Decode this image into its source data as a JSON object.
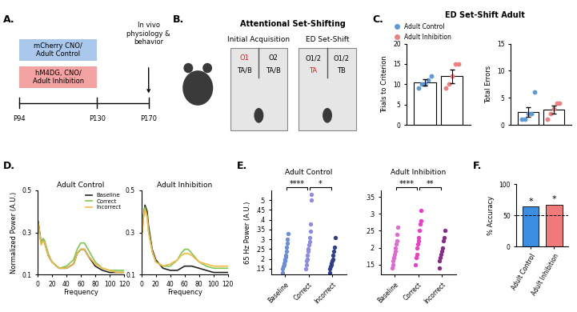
{
  "panel_labels": [
    "A.",
    "B.",
    "C.",
    "D.",
    "E.",
    "F."
  ],
  "timeline": {
    "bars": [
      {
        "label": "mCherry CNO/\nAdult Control",
        "color": "#a9c8ec"
      },
      {
        "label": "hM4DG, CNO/\nAdult Inhibition",
        "color": "#f4a3a3"
      }
    ],
    "ticks": [
      "P94",
      "P130",
      "P170"
    ],
    "endpoint": "In vivo\nphysiology &\nbehavior"
  },
  "task": {
    "title": "Attentional Set-Shifting",
    "stages": [
      {
        "title": "Initial Acquisition",
        "arms": [
          {
            "odor": "O1",
            "odor_color": "#e02020",
            "texture": "TA/B",
            "texture_color": "#000000"
          },
          {
            "odor": "O2",
            "odor_color": "#000000",
            "texture": "TA/B",
            "texture_color": "#000000"
          }
        ]
      },
      {
        "title": "ED Set-Shift",
        "arms": [
          {
            "odor": "O1/2",
            "odor_color": "#000000",
            "texture": "TA",
            "texture_color": "#e02020"
          },
          {
            "odor": "O1/2",
            "odor_color": "#000000",
            "texture": "TB",
            "texture_color": "#000000"
          }
        ]
      }
    ]
  },
  "chart_data": [
    {
      "type": "bar",
      "title": "ED Set-Shift Adult",
      "ylabel": "Trials to Criterion",
      "categories": [
        null
      ],
      "ylim": [
        0,
        20
      ],
      "yticks": [
        0,
        5,
        10,
        15,
        20
      ],
      "legend": "lower left",
      "series": [
        {
          "name": "Adult Control",
          "color": "#5b9bd5",
          "values": [
            10.4
          ],
          "errors": [
            0.8
          ],
          "points": [
            9,
            10,
            10,
            11,
            12
          ]
        },
        {
          "name": "Adult Inhibition",
          "color": "#f08080",
          "values": [
            12
          ],
          "errors": [
            1.7
          ],
          "points": [
            9,
            10,
            12,
            15,
            15
          ]
        }
      ]
    },
    {
      "type": "bar",
      "ylabel": "Total Errors",
      "categories": [
        null
      ],
      "ylim": [
        0,
        15
      ],
      "yticks": [
        0,
        5,
        10,
        15
      ],
      "series": [
        {
          "color": "#5b9bd5",
          "values": [
            2.4
          ],
          "errors": [
            0.9
          ],
          "points": [
            1,
            1,
            2,
            2,
            6
          ]
        },
        {
          "color": "#f08080",
          "values": [
            2.8
          ],
          "errors": [
            0.8
          ],
          "points": [
            1,
            2,
            3,
            4,
            4
          ]
        }
      ]
    },
    {
      "type": "line",
      "title": "Adult Control",
      "xlabel": "Frequency",
      "ylabel": "Normalized Power (A.U.)",
      "x": [
        1,
        3,
        5,
        8,
        10,
        15,
        20,
        30,
        40,
        50,
        55,
        60,
        65,
        70,
        80,
        90,
        100,
        110,
        120
      ],
      "xlim": [
        0,
        120
      ],
      "xticks": [
        0,
        20,
        40,
        60,
        80,
        100,
        120
      ],
      "ylim": [
        0.1,
        0.5
      ],
      "yticks": [
        0.1,
        0.3,
        0.5
      ],
      "legend": "upper right",
      "series": [
        {
          "name": "Baseline",
          "color": "#222222",
          "values": [
            0.35,
            0.3,
            0.25,
            0.27,
            0.25,
            0.19,
            0.16,
            0.13,
            0.13,
            0.15,
            0.2,
            0.22,
            0.22,
            0.19,
            0.14,
            0.12,
            0.11,
            0.11,
            0.11
          ]
        },
        {
          "name": "Correct",
          "color": "#7ec850",
          "values": [
            0.35,
            0.3,
            0.25,
            0.27,
            0.26,
            0.2,
            0.16,
            0.13,
            0.14,
            0.17,
            0.22,
            0.25,
            0.25,
            0.22,
            0.16,
            0.13,
            0.12,
            0.12,
            0.12
          ]
        },
        {
          "name": "Incorrect",
          "color": "#f5b942",
          "values": [
            0.34,
            0.29,
            0.24,
            0.26,
            0.25,
            0.19,
            0.16,
            0.13,
            0.13,
            0.15,
            0.2,
            0.22,
            0.22,
            0.19,
            0.15,
            0.13,
            0.12,
            0.11,
            0.11
          ]
        }
      ]
    },
    {
      "type": "line",
      "title": "Adult Inhibition",
      "xlabel": "Frequency",
      "x": [
        1,
        3,
        5,
        8,
        10,
        15,
        20,
        30,
        40,
        50,
        55,
        60,
        65,
        70,
        80,
        90,
        100,
        110,
        120
      ],
      "xlim": [
        0,
        120
      ],
      "xticks": [
        0,
        20,
        40,
        60,
        80,
        100,
        120
      ],
      "ylim": [
        0.1,
        0.5
      ],
      "yticks": [
        0.1,
        0.3,
        0.5
      ],
      "series": [
        {
          "color": "#222222",
          "values": [
            0.3,
            0.38,
            0.43,
            0.4,
            0.33,
            0.22,
            0.17,
            0.13,
            0.12,
            0.12,
            0.13,
            0.14,
            0.14,
            0.14,
            0.13,
            0.12,
            0.11,
            0.11,
            0.11
          ]
        },
        {
          "color": "#7ec850",
          "values": [
            0.3,
            0.38,
            0.42,
            0.38,
            0.31,
            0.21,
            0.16,
            0.14,
            0.14,
            0.17,
            0.2,
            0.22,
            0.22,
            0.2,
            0.16,
            0.14,
            0.13,
            0.13,
            0.13
          ]
        },
        {
          "color": "#f5b942",
          "values": [
            0.3,
            0.37,
            0.41,
            0.37,
            0.3,
            0.21,
            0.16,
            0.14,
            0.15,
            0.17,
            0.19,
            0.2,
            0.2,
            0.19,
            0.16,
            0.15,
            0.14,
            0.14,
            0.14
          ]
        }
      ]
    },
    {
      "type": "scatter",
      "title": "Adult Control",
      "ylabel": "65 Hz Power (A.U.)",
      "categories": [
        "Baseline",
        "Correct",
        "Incorrect"
      ],
      "colors": [
        "#6a8fd8",
        "#8c8ce8",
        "#2f3f8f"
      ],
      "values": [
        [
          0.13,
          0.15,
          0.16,
          0.17,
          0.18,
          0.19,
          0.2,
          0.21,
          0.22,
          0.24,
          0.26,
          0.28,
          0.3,
          0.33
        ],
        [
          0.15,
          0.17,
          0.19,
          0.2,
          0.22,
          0.24,
          0.25,
          0.27,
          0.29,
          0.31,
          0.34,
          0.38,
          0.5,
          0.53
        ],
        [
          0.13,
          0.15,
          0.16,
          0.17,
          0.18,
          0.19,
          0.2,
          0.22,
          0.24,
          0.26,
          0.31
        ]
      ],
      "ylim": [
        0.12,
        0.55
      ],
      "yticks": [
        {
          "value": 0.15,
          "label": ".15"
        },
        {
          "value": 0.2,
          "label": ".2"
        },
        {
          "value": 0.25,
          "label": ".25"
        },
        {
          "value": 0.3,
          "label": ".3"
        },
        {
          "value": 0.35,
          "label": ".35"
        },
        {
          "value": 0.4,
          "label": ".4"
        },
        {
          "value": 0.45,
          "label": ".45"
        },
        {
          "value": 0.5,
          "label": ".5"
        }
      ],
      "annotations": [
        {
          "from": "Baseline",
          "to": "Correct",
          "text": "****"
        },
        {
          "from": "Correct",
          "to": "Incorrect",
          "text": "*"
        }
      ]
    },
    {
      "type": "scatter",
      "title": "Adult Inhibition",
      "categories": [
        "Baseline",
        "Correct",
        "Incorrect"
      ],
      "colors": [
        "#e06ad0",
        "#f03cc8",
        "#8a2a8a"
      ],
      "values": [
        [
          0.14,
          0.15,
          0.16,
          0.17,
          0.17,
          0.18,
          0.19,
          0.2,
          0.21,
          0.22,
          0.24,
          0.26
        ],
        [
          0.15,
          0.17,
          0.18,
          0.2,
          0.21,
          0.22,
          0.23,
          0.25,
          0.27,
          0.28,
          0.31
        ],
        [
          0.14,
          0.16,
          0.17,
          0.18,
          0.19,
          0.2,
          0.22,
          0.23,
          0.25
        ]
      ],
      "ylim": [
        0.12,
        0.37
      ],
      "yticks": [
        {
          "value": 0.15,
          "label": ".15"
        },
        {
          "value": 0.2,
          "label": ".2"
        },
        {
          "value": 0.25,
          "label": ".25"
        },
        {
          "value": 0.3,
          "label": ".3"
        },
        {
          "value": 0.35,
          "label": ".35"
        }
      ],
      "annotations": [
        {
          "from": "Baseline",
          "to": "Correct",
          "text": "****"
        },
        {
          "from": "Correct",
          "to": "Incorrect",
          "text": "**"
        }
      ]
    },
    {
      "type": "bar",
      "ylabel": "% Accuracy",
      "categories": [
        "Adult Control",
        "Adult Inhibition"
      ],
      "values": [
        64,
        67
      ],
      "colors": [
        "#3b8ee0",
        "#f07a7a"
      ],
      "ylim": [
        0,
        100
      ],
      "yticks": [
        0,
        50,
        100
      ],
      "chance": 50,
      "value_marks": [
        "*",
        "*"
      ]
    }
  ]
}
